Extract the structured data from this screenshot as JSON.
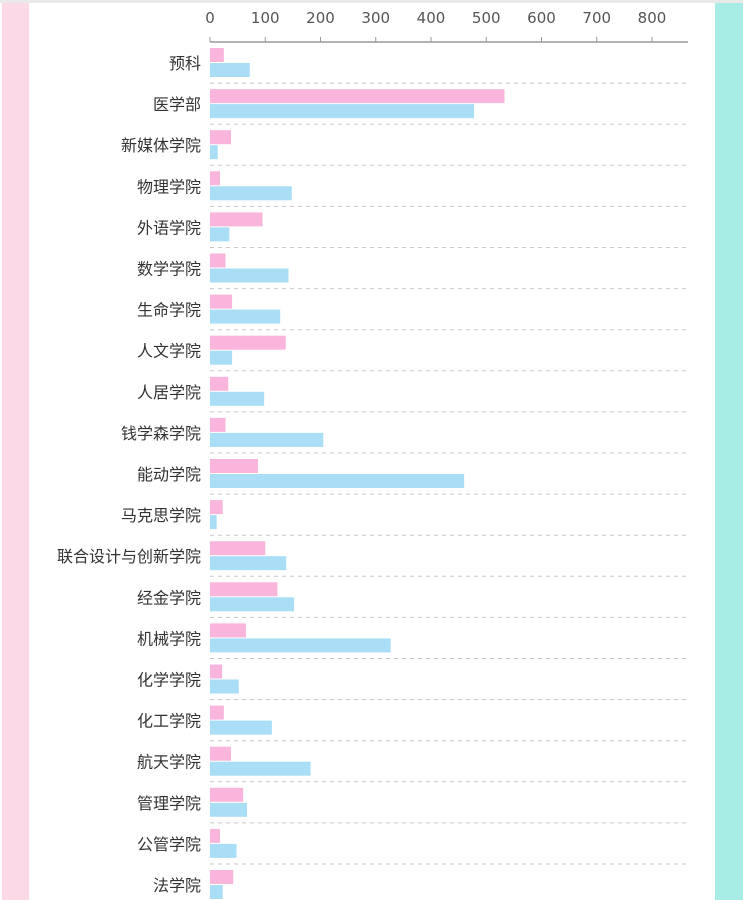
{
  "colors": {
    "left_panel": "#fbd9e6",
    "right_panel": "#a8ece6",
    "series_1": "#f9b5dc",
    "series_2": "#a9def6",
    "axis": "#999999",
    "grid": "#c8c8c8"
  },
  "chart_data": {
    "type": "bar",
    "orientation": "horizontal",
    "title": "",
    "xlabel": "",
    "ylabel": "",
    "xlim": [
      0,
      870
    ],
    "x_ticks": [
      0,
      100,
      200,
      300,
      400,
      500,
      600,
      700,
      800
    ],
    "x_axis_position": "top",
    "grid": "dashed row separators",
    "legend": "none",
    "categories": [
      "预科",
      "医学部",
      "新媒体学院",
      "物理学院",
      "外语学院",
      "数学学院",
      "生命学院",
      "人文学院",
      "人居学院",
      "钱学森学院",
      "能动学院",
      "马克思学院",
      "联合设计与创新学院",
      "经金学院",
      "机械学院",
      "化学学院",
      "化工学院",
      "航天学院",
      "管理学院",
      "公管学院",
      "法学院"
    ],
    "series": [
      {
        "values": [
          25,
          533,
          38,
          18,
          95,
          28,
          40,
          137,
          33,
          28,
          87,
          23,
          100,
          122,
          65,
          22,
          25,
          38,
          60,
          18,
          42
        ]
      },
      {
        "values": [
          72,
          478,
          14,
          148,
          35,
          142,
          127,
          40,
          98,
          205,
          460,
          12,
          138,
          152,
          327,
          52,
          112,
          182,
          67,
          48,
          23
        ]
      }
    ]
  }
}
